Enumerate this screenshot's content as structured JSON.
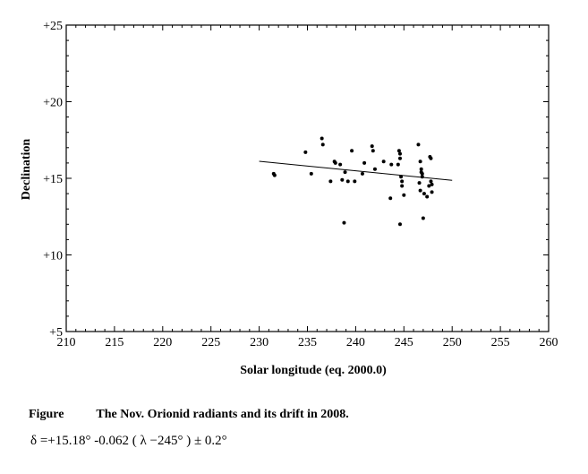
{
  "chart_data": {
    "type": "scatter",
    "title": "",
    "xlabel": "Solar longitude (eq. 2000.0)",
    "ylabel": "Declination",
    "xlim": [
      210,
      260
    ],
    "ylim": [
      5,
      25
    ],
    "x_ticks": [
      "210",
      "215",
      "220",
      "225",
      "230",
      "235",
      "240",
      "245",
      "250",
      "255",
      "260"
    ],
    "y_ticks": [
      "+5",
      "+10",
      "+15",
      "+20",
      "+25"
    ],
    "y_tick_values": [
      5,
      10,
      15,
      20,
      25
    ],
    "grid": false,
    "series": [
      {
        "name": "radiants",
        "x": [
          231.5,
          231.6,
          234.8,
          235.4,
          236.5,
          236.6,
          237.4,
          237.8,
          237.9,
          238.4,
          238.6,
          238.8,
          238.9,
          239.2,
          239.6,
          239.9,
          240.7,
          240.9,
          241.7,
          241.8,
          242.0,
          242.9,
          243.6,
          243.7,
          244.4,
          244.5,
          244.6,
          244.6,
          244.6,
          244.7,
          244.8,
          244.8,
          245.0,
          246.5,
          246.6,
          246.7,
          246.7,
          246.8,
          246.8,
          246.9,
          246.9,
          247.0,
          247.1,
          247.4,
          247.6,
          247.7,
          247.8,
          247.8,
          247.9,
          247.9
        ],
        "y": [
          15.3,
          15.2,
          16.7,
          15.3,
          17.6,
          17.2,
          14.8,
          16.1,
          16.0,
          15.9,
          14.9,
          12.1,
          15.4,
          14.8,
          16.8,
          14.8,
          15.3,
          16.0,
          17.1,
          16.8,
          15.6,
          16.1,
          13.7,
          15.9,
          15.9,
          16.8,
          16.6,
          16.3,
          12.0,
          15.1,
          14.8,
          14.5,
          13.9,
          17.2,
          14.7,
          14.2,
          16.1,
          15.6,
          15.4,
          15.1,
          15.3,
          12.4,
          14.0,
          13.8,
          14.5,
          16.4,
          16.3,
          14.8,
          14.6,
          14.1
        ]
      }
    ],
    "fit_line": {
      "x": [
        230,
        250
      ],
      "y": [
        16.11,
        14.87
      ]
    }
  },
  "caption": {
    "label": "Figure",
    "title": "The Nov. Orionid radiants and its drift in 2008.",
    "formula": "δ =+15.18°  -0.062 ( λ −245°  )  ± 0.2°"
  }
}
